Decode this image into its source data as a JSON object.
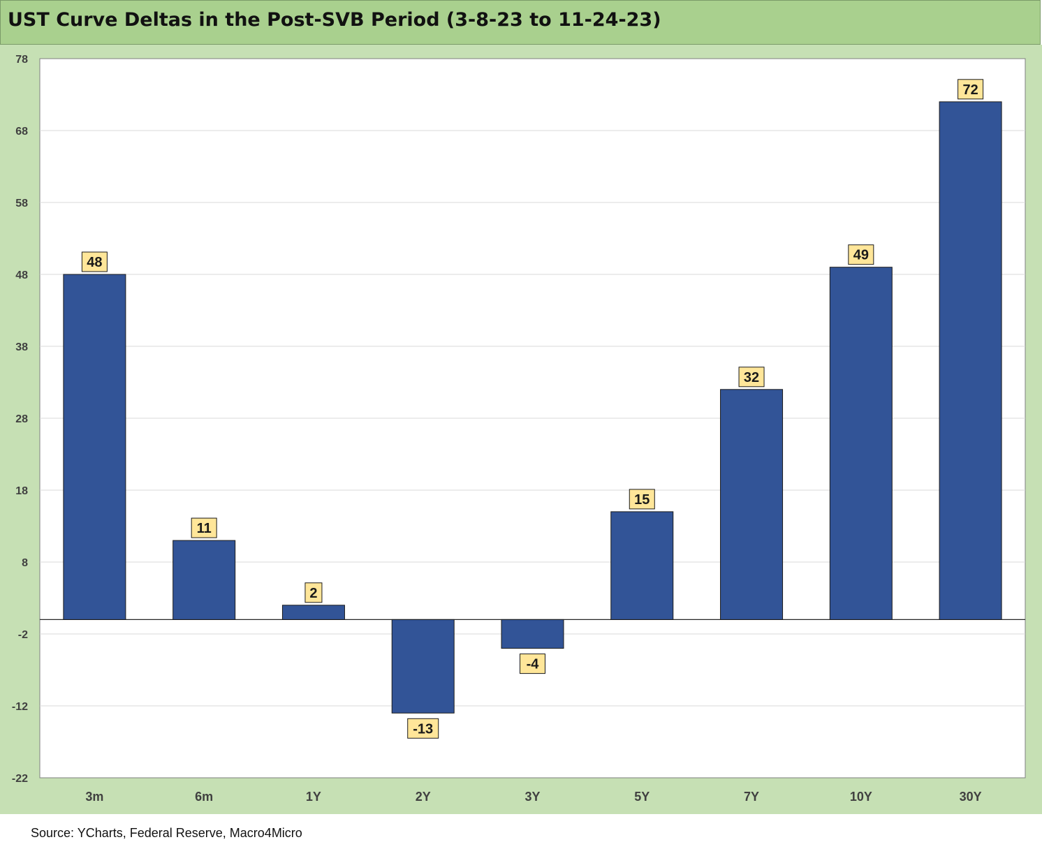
{
  "title": "UST Curve Deltas in the Post-SVB Period (3-8-23 to 11-24-23)",
  "source": "Source: YCharts, Federal Reserve, Macro4Micro",
  "colors": {
    "bar": "#325497",
    "bar_outline": "#1a1a1a",
    "label_bg": "#ffe699",
    "panel_bg": "#c6e0b4",
    "title_bg": "#a9d08e",
    "plot_bg": "#ffffff",
    "grid": "#d9d9d9"
  },
  "chart_data": {
    "type": "bar",
    "title": "UST Curve Deltas in the Post-SVB Period (3-8-23 to 11-24-23)",
    "xlabel": "",
    "ylabel": "",
    "categories": [
      "3m",
      "6m",
      "1Y",
      "2Y",
      "3Y",
      "5Y",
      "7Y",
      "10Y",
      "30Y"
    ],
    "values": [
      48,
      11,
      2,
      -13,
      -4,
      15,
      32,
      49,
      72
    ],
    "ylim": [
      -22,
      78
    ],
    "yticks": [
      78,
      68,
      58,
      48,
      38,
      28,
      18,
      8,
      -2,
      -12,
      -22
    ],
    "grid": true,
    "legend": "none"
  }
}
